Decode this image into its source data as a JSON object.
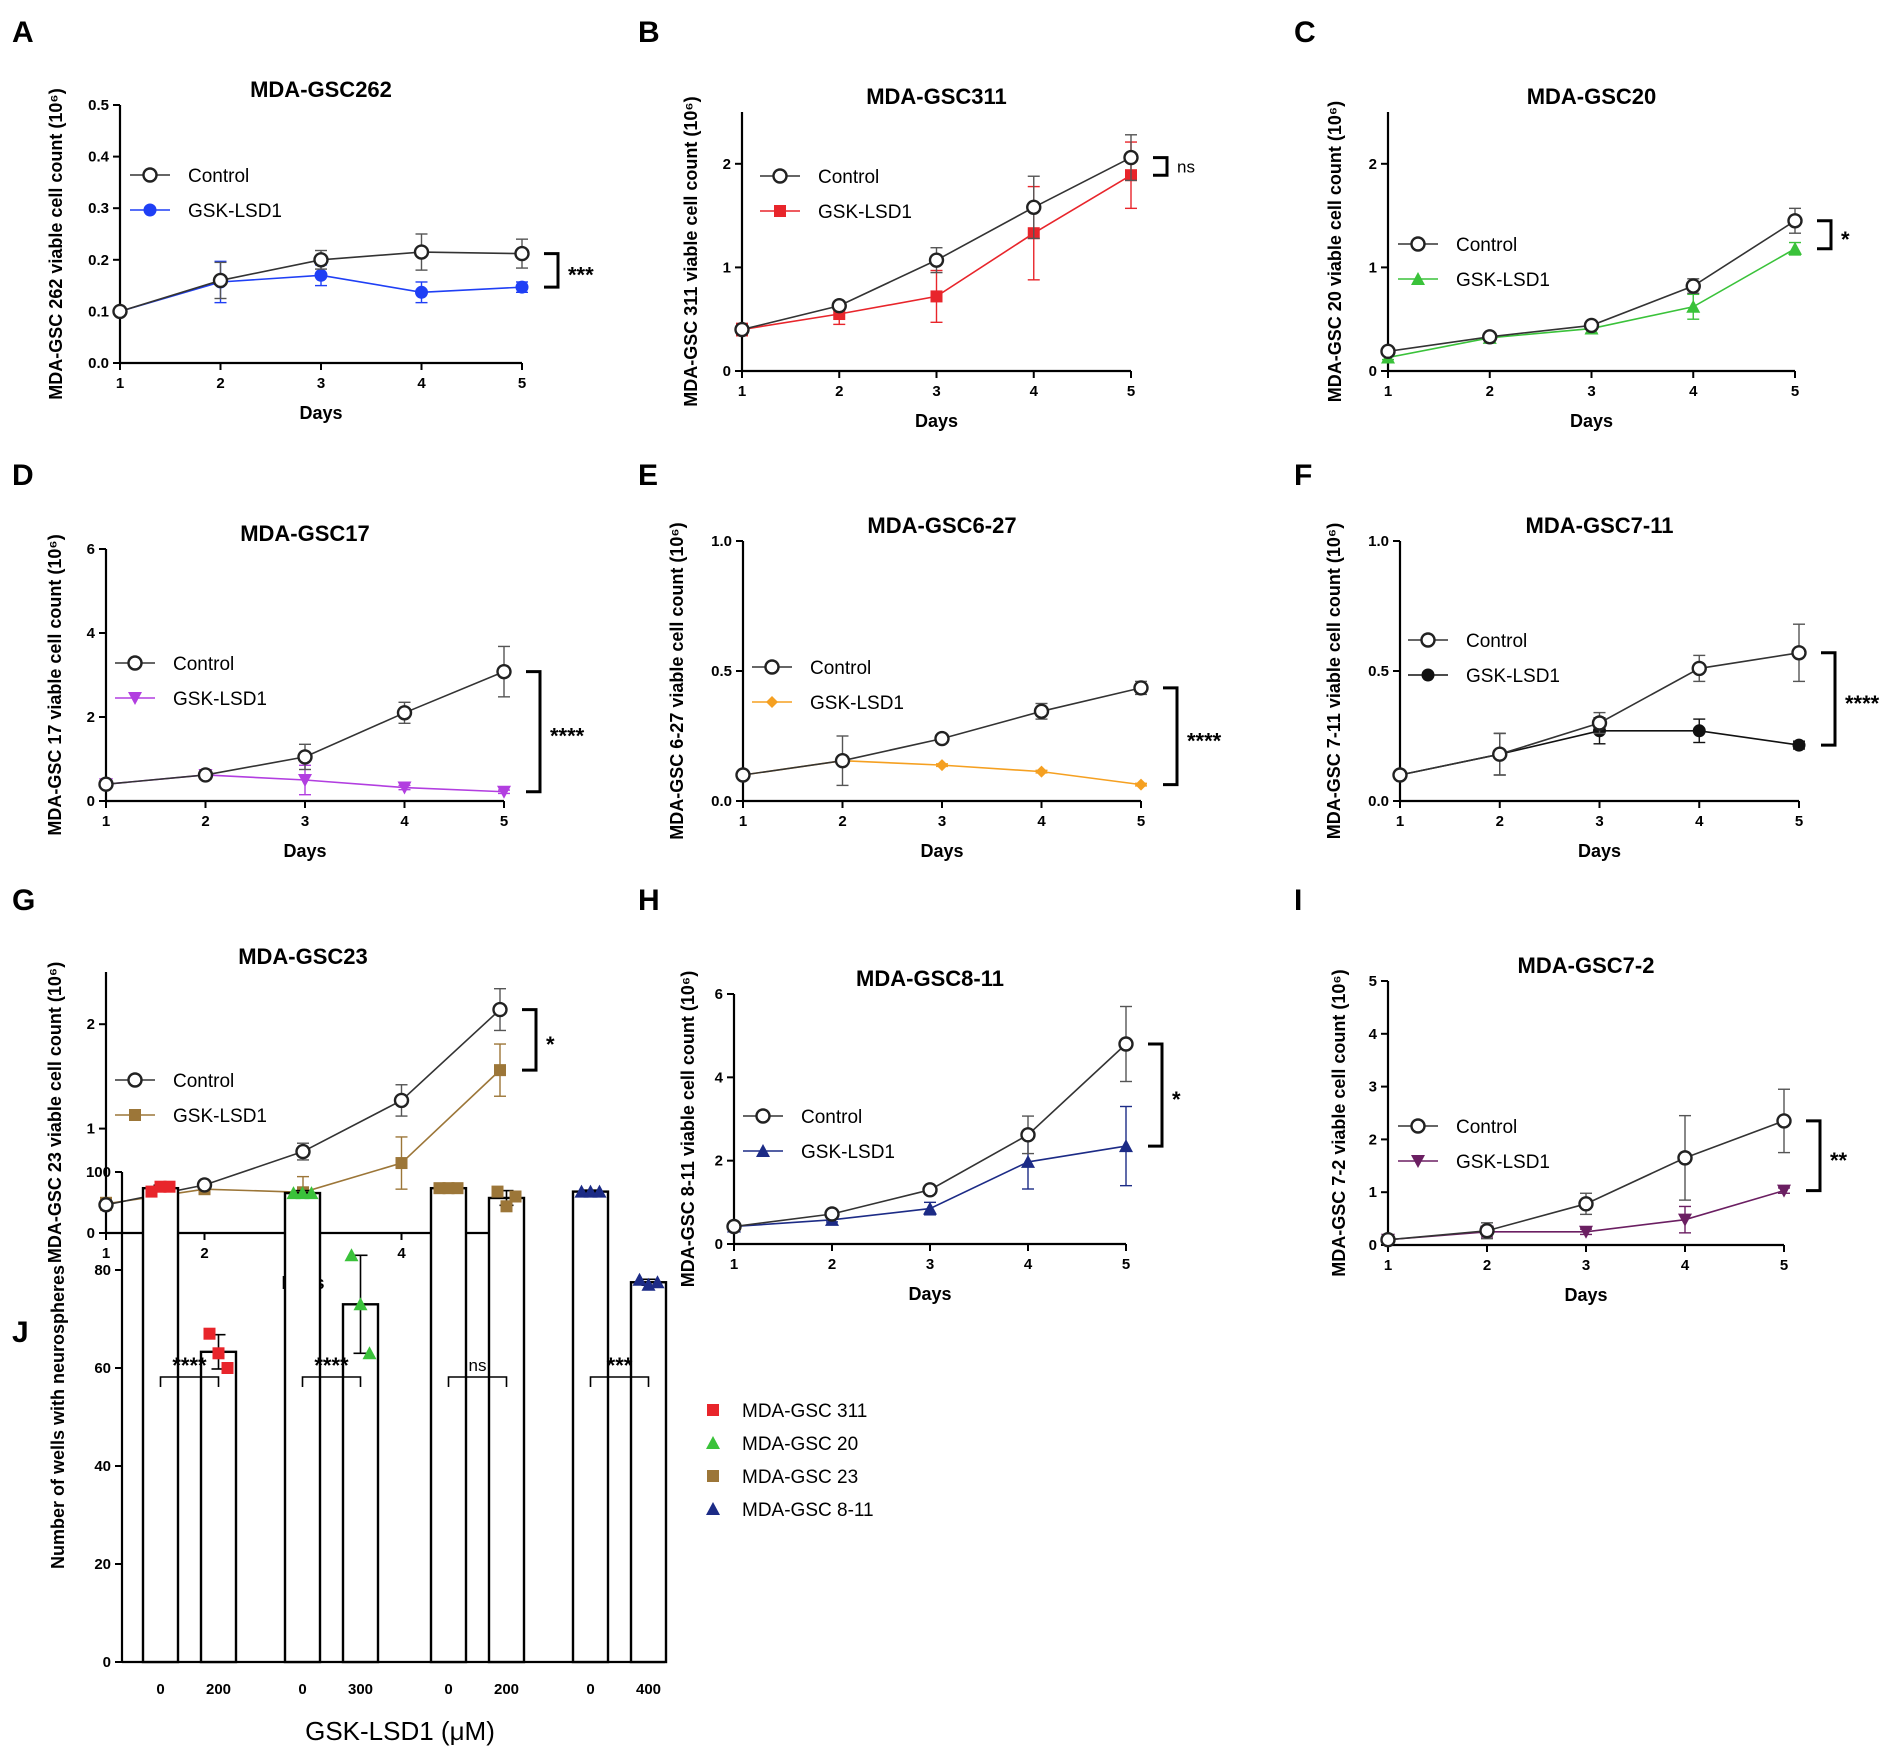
{
  "colors": {
    "control": "#222222",
    "gsc262": "#1f3ff5",
    "gsc311": "#e8252b",
    "gsc20": "#3ac23a",
    "gsc17": "#b23ee0",
    "gsc6_27": "#f5a021",
    "gsc7_11": "#111111",
    "gsc23": "#9c7638",
    "gsc8_11": "#1c2b86",
    "gsc7_2": "#6b1f62"
  },
  "chart_data": [
    {
      "panel": "A",
      "type": "line",
      "title": "MDA-GSC262",
      "xlabel": "Days",
      "ylabel": "MDA-GSC 262 viable cell count (10⁶)",
      "x": [
        1,
        2,
        3,
        4,
        5
      ],
      "xlim": [
        1,
        5
      ],
      "ylim": [
        0,
        0.5
      ],
      "yticks": [
        0.0,
        0.1,
        0.2,
        0.3,
        0.4,
        0.5
      ],
      "ytick_labels": [
        "0.0",
        "0.1",
        "0.2",
        "0.3",
        "0.4",
        "0.5"
      ],
      "series": [
        {
          "name": "Control",
          "values": [
            0.1,
            0.16,
            0.2,
            0.215,
            0.212
          ],
          "errors": [
            0,
            0.035,
            0.018,
            0.035,
            0.028
          ],
          "marker": "open-circle",
          "color_key": "control"
        },
        {
          "name": "GSK-LSD1",
          "values": [
            0.1,
            0.157,
            0.17,
            0.137,
            0.147
          ],
          "errors": [
            0,
            0.04,
            0.02,
            0.02,
            0.01
          ],
          "marker": "circle",
          "color_key": "gsc262"
        }
      ],
      "significance": "***"
    },
    {
      "panel": "B",
      "type": "line",
      "title": "MDA-GSC311",
      "xlabel": "Days",
      "ylabel": "MDA-GSC 311 viable cell count (10⁶)",
      "x": [
        1,
        2,
        3,
        4,
        5
      ],
      "xlim": [
        1,
        5
      ],
      "ylim": [
        0,
        2.5
      ],
      "yticks": [
        0,
        1,
        2
      ],
      "ytick_labels": [
        "0",
        "1",
        "2"
      ],
      "series": [
        {
          "name": "Control",
          "values": [
            0.4,
            0.63,
            1.07,
            1.58,
            2.06
          ],
          "errors": [
            0.03,
            0.03,
            0.12,
            0.3,
            0.22
          ],
          "marker": "open-circle",
          "color_key": "control"
        },
        {
          "name": "GSK-LSD1",
          "values": [
            0.4,
            0.55,
            0.72,
            1.33,
            1.89
          ],
          "errors": [
            0.06,
            0.1,
            0.25,
            0.45,
            0.32
          ],
          "marker": "square",
          "color_key": "gsc311"
        }
      ],
      "significance": "ns"
    },
    {
      "panel": "C",
      "type": "line",
      "title": "MDA-GSC20",
      "xlabel": "Days",
      "ylabel": "MDA-GSC 20 viable cell count (10⁶)",
      "x": [
        1,
        2,
        3,
        4,
        5
      ],
      "xlim": [
        1,
        5
      ],
      "ylim": [
        0,
        2.5
      ],
      "yticks": [
        0,
        1,
        2
      ],
      "ytick_labels": [
        "0",
        "1",
        "2"
      ],
      "series": [
        {
          "name": "Control",
          "values": [
            0.19,
            0.33,
            0.44,
            0.82,
            1.45
          ],
          "errors": [
            0.02,
            0.02,
            0.03,
            0.07,
            0.12
          ],
          "marker": "open-circle",
          "color_key": "control"
        },
        {
          "name": "GSK-LSD1",
          "values": [
            0.13,
            0.32,
            0.41,
            0.62,
            1.18
          ],
          "errors": [
            0.02,
            0.02,
            0.04,
            0.12,
            0.06
          ],
          "marker": "triangle",
          "color_key": "gsc20"
        }
      ],
      "significance": "*"
    },
    {
      "panel": "D",
      "type": "line",
      "title": "MDA-GSC17",
      "xlabel": "Days",
      "ylabel": "MDA-GSC 17 viable cell count (10⁶)",
      "x": [
        1,
        2,
        3,
        4,
        5
      ],
      "xlim": [
        1,
        5
      ],
      "ylim": [
        0,
        6
      ],
      "yticks": [
        0,
        2,
        4,
        6
      ],
      "ytick_labels": [
        "0",
        "2",
        "4",
        "6"
      ],
      "series": [
        {
          "name": "Control",
          "values": [
            0.4,
            0.62,
            1.05,
            2.1,
            3.08
          ],
          "errors": [
            0.05,
            0.07,
            0.3,
            0.25,
            0.6
          ],
          "marker": "open-circle",
          "color_key": "control"
        },
        {
          "name": "GSK-LSD1",
          "values": [
            0.4,
            0.62,
            0.5,
            0.32,
            0.22
          ],
          "errors": [
            0.05,
            0.1,
            0.35,
            0.05,
            0.04
          ],
          "marker": "triangle-down",
          "color_key": "gsc17"
        }
      ],
      "significance": "****"
    },
    {
      "panel": "E",
      "type": "line",
      "title": "MDA-GSC6-27",
      "xlabel": "Days",
      "ylabel": "MDA-GSC 6-27 viable cell count (10⁶)",
      "x": [
        1,
        2,
        3,
        4,
        5
      ],
      "xlim": [
        1,
        5
      ],
      "ylim": [
        0,
        1.0
      ],
      "yticks": [
        0.0,
        0.5,
        1.0
      ],
      "ytick_labels": [
        "0.0",
        "0.5",
        "1.0"
      ],
      "series": [
        {
          "name": "Control",
          "values": [
            0.1,
            0.155,
            0.24,
            0.345,
            0.435
          ],
          "errors": [
            0.005,
            0.095,
            0.01,
            0.03,
            0.025
          ],
          "marker": "open-circle",
          "color_key": "control"
        },
        {
          "name": "GSK-LSD1",
          "values": [
            0.1,
            0.155,
            0.138,
            0.113,
            0.063
          ],
          "errors": [
            0.005,
            0.01,
            0.005,
            0.005,
            0.005
          ],
          "marker": "diamond",
          "color_key": "gsc6_27"
        }
      ],
      "significance": "****"
    },
    {
      "panel": "F",
      "type": "line",
      "title": "MDA-GSC7-11",
      "xlabel": "Days",
      "ylabel": "MDA-GSC 7-11 viable cell count (10⁶)",
      "x": [
        1,
        2,
        3,
        4,
        5
      ],
      "xlim": [
        1,
        5
      ],
      "ylim": [
        0,
        1.0
      ],
      "yticks": [
        0.0,
        0.5,
        1.0
      ],
      "ytick_labels": [
        "0.0",
        "0.5",
        "1.0"
      ],
      "series": [
        {
          "name": "Control",
          "values": [
            0.1,
            0.18,
            0.3,
            0.51,
            0.57
          ],
          "errors": [
            0.005,
            0.08,
            0.04,
            0.05,
            0.11
          ],
          "marker": "open-circle",
          "color_key": "control"
        },
        {
          "name": "GSK-LSD1",
          "values": [
            0.1,
            0.18,
            0.27,
            0.27,
            0.215
          ],
          "errors": [
            0.005,
            0.08,
            0.05,
            0.045,
            0.015
          ],
          "marker": "circle",
          "color_key": "gsc7_11"
        }
      ],
      "significance": "****"
    },
    {
      "panel": "G",
      "type": "line",
      "title": "MDA-GSC23",
      "xlabel": "Days",
      "ylabel": "MDA-GSC 23 viable cell count (10⁶)",
      "x": [
        1,
        2,
        3,
        4,
        5
      ],
      "xlim": [
        1,
        5
      ],
      "ylim": [
        0,
        2.5
      ],
      "yticks": [
        0,
        1,
        2
      ],
      "ytick_labels": [
        "0",
        "1",
        "2"
      ],
      "series": [
        {
          "name": "Control",
          "values": [
            0.27,
            0.46,
            0.78,
            1.27,
            2.14
          ],
          "errors": [
            0.03,
            0.03,
            0.08,
            0.15,
            0.2
          ],
          "marker": "open-circle",
          "color_key": "control"
        },
        {
          "name": "GSK-LSD1",
          "values": [
            0.28,
            0.42,
            0.39,
            0.67,
            1.56
          ],
          "errors": [
            0.06,
            0.05,
            0.15,
            0.25,
            0.25
          ],
          "marker": "square",
          "color_key": "gsc23"
        }
      ],
      "significance": "*"
    },
    {
      "panel": "H",
      "type": "line",
      "title": "MDA-GSC8-11",
      "xlabel": "Days",
      "ylabel": "MDA-GSC 8-11 viable cell count (10⁶)",
      "x": [
        1,
        2,
        3,
        4,
        5
      ],
      "xlim": [
        1,
        5
      ],
      "ylim": [
        0,
        6
      ],
      "yticks": [
        0,
        2,
        4,
        6
      ],
      "ytick_labels": [
        "0",
        "2",
        "4",
        "6"
      ],
      "series": [
        {
          "name": "Control",
          "values": [
            0.42,
            0.72,
            1.3,
            2.62,
            4.8
          ],
          "errors": [
            0.05,
            0.05,
            0.1,
            0.45,
            0.9
          ],
          "marker": "open-circle",
          "color_key": "control"
        },
        {
          "name": "GSK-LSD1",
          "values": [
            0.42,
            0.58,
            0.85,
            1.97,
            2.35
          ],
          "errors": [
            0.05,
            0.05,
            0.15,
            0.65,
            0.95
          ],
          "marker": "triangle",
          "color_key": "gsc8_11"
        }
      ],
      "significance": "*"
    },
    {
      "panel": "I",
      "type": "line",
      "title": "MDA-GSC7-2",
      "xlabel": "Days",
      "ylabel": "MDA-GSC 7-2 viable cell count (10⁶)",
      "x": [
        1,
        2,
        3,
        4,
        5
      ],
      "xlim": [
        1,
        5
      ],
      "ylim": [
        0,
        5
      ],
      "yticks": [
        0,
        1,
        2,
        3,
        4,
        5
      ],
      "ytick_labels": [
        "0",
        "1",
        "2",
        "3",
        "4",
        "5"
      ],
      "series": [
        {
          "name": "Control",
          "values": [
            0.1,
            0.27,
            0.78,
            1.65,
            2.35
          ],
          "errors": [
            0.03,
            0.15,
            0.2,
            0.8,
            0.6
          ],
          "marker": "open-circle",
          "color_key": "control"
        },
        {
          "name": "GSK-LSD1",
          "values": [
            0.1,
            0.25,
            0.25,
            0.48,
            1.03
          ],
          "errors": [
            0.02,
            0.1,
            0.05,
            0.25,
            0.05
          ],
          "marker": "triangle-down",
          "color_key": "gsc7_2"
        }
      ],
      "significance": "**"
    },
    {
      "panel": "J",
      "type": "bar",
      "ylabel": "Number of wells with neurospheres",
      "xlabel": "GSK-LSD1 (μM)",
      "ylim": [
        0,
        100
      ],
      "yticks": [
        0,
        20,
        40,
        60,
        80,
        100
      ],
      "groups": [
        {
          "name": "MDA-GSC 311",
          "color_key": "gsc311",
          "marker": "square",
          "categories": [
            "0",
            "200"
          ],
          "values": [
            96.7,
            63.3
          ],
          "points": [
            [
              96,
              97,
              97
            ],
            [
              67,
              63,
              60
            ]
          ],
          "errors": [
            0.6,
            3.5
          ],
          "significance": "****"
        },
        {
          "name": "MDA-GSC 20",
          "color_key": "gsc20",
          "marker": "triangle",
          "categories": [
            "0",
            "300"
          ],
          "values": [
            95.7,
            73.0
          ],
          "points": [
            [
              95.7,
              95.7,
              95.7
            ],
            [
              83,
              73,
              63
            ]
          ],
          "errors": [
            0.5,
            10
          ],
          "significance": "****"
        },
        {
          "name": "MDA-GSC 23",
          "color_key": "gsc23",
          "marker": "square",
          "categories": [
            "0",
            "200"
          ],
          "values": [
            96.7,
            94.7
          ],
          "points": [
            [
              96.7,
              96.7,
              96.7
            ],
            [
              96,
              93,
              95
            ]
          ],
          "errors": [
            0.3,
            1.5
          ],
          "significance": "ns"
        },
        {
          "name": "MDA-GSC 8-11",
          "color_key": "gsc8_11",
          "marker": "triangle",
          "categories": [
            "0",
            "400"
          ],
          "values": [
            96.0,
            77.5
          ],
          "points": [
            [
              96,
              96,
              96
            ],
            [
              78,
              77,
              77.5
            ]
          ],
          "errors": [
            0.3,
            0.6
          ],
          "significance": "***"
        }
      ],
      "legend": [
        "MDA-GSC 311",
        "MDA-GSC 20",
        "MDA-GSC 23",
        "MDA-GSC 8-11"
      ]
    }
  ]
}
